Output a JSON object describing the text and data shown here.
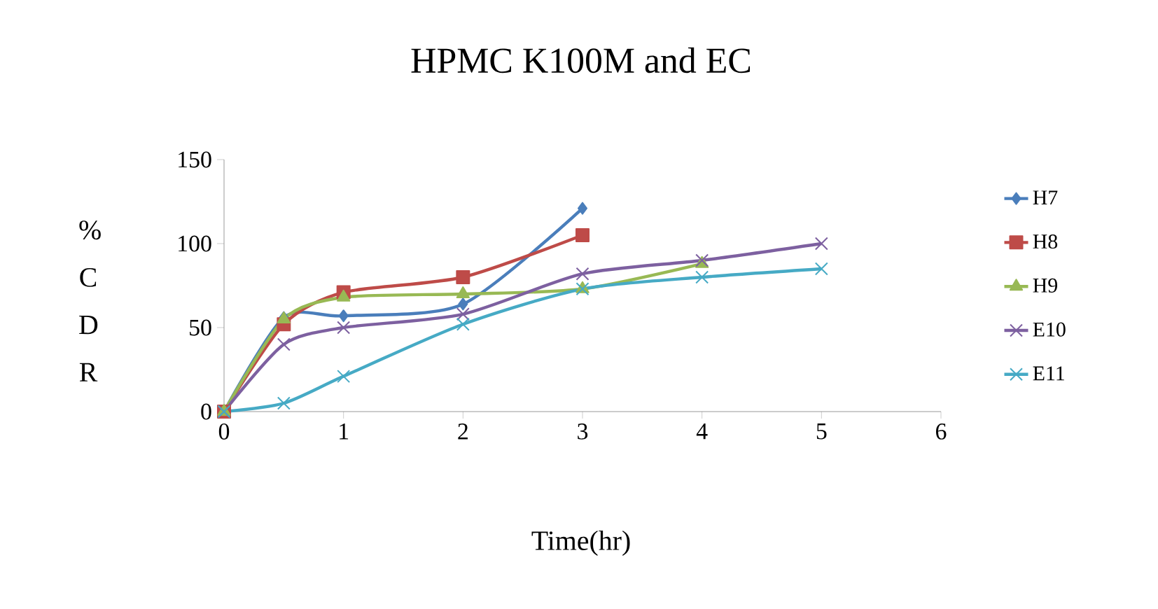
{
  "chart_data": {
    "type": "line",
    "title": "HPMC K100M and EC",
    "xlabel": "Time(hr)",
    "ylabel": "% C D R",
    "xlim": [
      0,
      6
    ],
    "xticks": [
      0,
      1,
      2,
      3,
      4,
      5,
      6
    ],
    "ylim": [
      0,
      150
    ],
    "yticks": [
      0,
      50,
      100,
      150
    ],
    "grid": false,
    "legend": "right",
    "series": [
      {
        "name": "H7",
        "color": "#4a7ebb",
        "marker": "diamond",
        "x": [
          0,
          0.5,
          1,
          2,
          3
        ],
        "values": [
          0,
          56,
          57,
          64,
          121
        ]
      },
      {
        "name": "H8",
        "color": "#be4b48",
        "marker": "square",
        "x": [
          0,
          0.5,
          1,
          2,
          3
        ],
        "values": [
          0,
          52,
          71,
          80,
          105
        ]
      },
      {
        "name": "H9",
        "color": "#98b954",
        "marker": "triangle",
        "x": [
          0,
          0.5,
          1,
          2,
          3,
          4
        ],
        "values": [
          0,
          55,
          68,
          70,
          73,
          88
        ]
      },
      {
        "name": "E10",
        "color": "#7d60a0",
        "marker": "cross",
        "x": [
          0,
          0.5,
          1,
          2,
          3,
          4,
          5
        ],
        "values": [
          0,
          40,
          50,
          58,
          82,
          90,
          100
        ]
      },
      {
        "name": "E11",
        "color": "#46aac5",
        "marker": "cross",
        "x": [
          0,
          0.5,
          1,
          2,
          3,
          4,
          5
        ],
        "values": [
          0,
          5,
          21,
          52,
          73,
          80,
          85
        ]
      }
    ]
  }
}
